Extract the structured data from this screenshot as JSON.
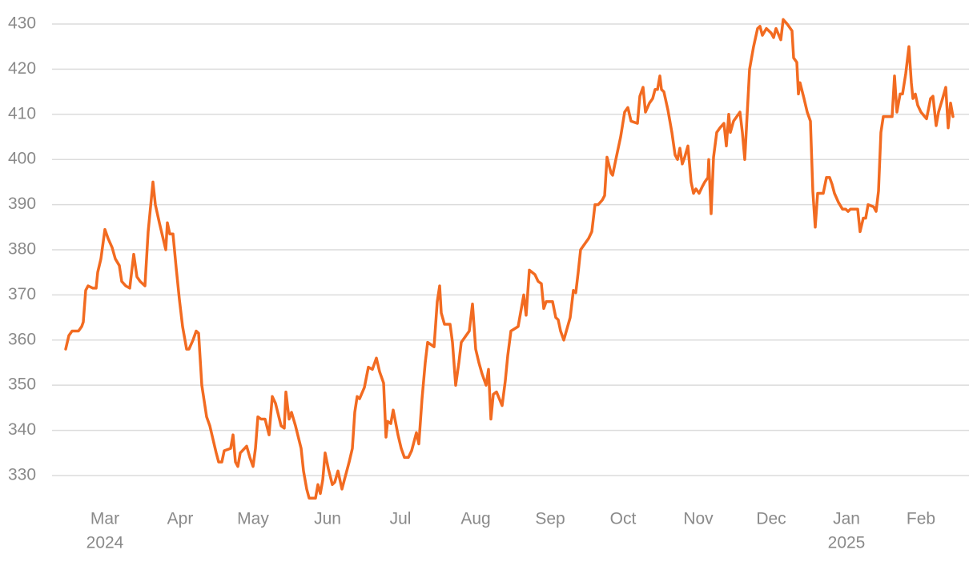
{
  "chart_data": {
    "type": "line",
    "color": "#f26b21",
    "grid": true,
    "ylim": [
      324.5,
      430
    ],
    "yticks": [
      330,
      340,
      350,
      360,
      370,
      380,
      390,
      400,
      410,
      420,
      430
    ],
    "xlim": [
      -17,
      1128
    ],
    "xticks": [
      {
        "value": 49,
        "label": "Mar"
      },
      {
        "value": 143,
        "label": "Apr"
      },
      {
        "value": 234,
        "label": "May"
      },
      {
        "value": 327,
        "label": "Jun"
      },
      {
        "value": 418,
        "label": "Jul"
      },
      {
        "value": 512,
        "label": "Aug"
      },
      {
        "value": 605,
        "label": "Sep"
      },
      {
        "value": 696,
        "label": "Oct"
      },
      {
        "value": 790,
        "label": "Nov"
      },
      {
        "value": 881,
        "label": "Dec"
      },
      {
        "value": 975,
        "label": "Jan"
      },
      {
        "value": 1068,
        "label": "Feb"
      }
    ],
    "xtick_years": [
      {
        "value": 49,
        "label": "2024"
      },
      {
        "value": 975,
        "label": "2025"
      }
    ],
    "x": [
      0,
      4,
      8,
      16,
      20,
      22,
      25,
      28,
      34,
      38,
      40,
      44,
      49,
      53,
      58,
      62,
      67,
      70,
      75,
      80,
      85,
      89,
      93,
      99,
      103,
      109,
      112,
      117,
      121,
      125,
      127,
      130,
      134,
      138,
      142,
      146,
      151,
      154,
      159,
      163,
      166,
      170,
      176,
      180,
      184,
      188,
      191,
      195,
      198,
      206,
      209,
      212,
      215,
      218,
      226,
      230,
      234,
      237,
      240,
      244,
      249,
      254,
      258,
      262,
      269,
      273,
      275,
      279,
      282,
      287,
      294,
      297,
      301,
      304,
      312,
      315,
      318,
      321,
      324,
      328,
      333,
      336,
      340,
      345,
      348,
      354,
      358,
      361,
      364,
      367,
      373,
      378,
      383,
      388,
      392,
      397,
      400,
      402,
      406,
      409,
      415,
      419,
      423,
      428,
      432,
      438,
      441,
      445,
      449,
      452,
      460,
      464,
      467,
      469,
      473,
      480,
      483,
      487,
      491,
      494,
      500,
      504,
      508,
      512,
      516,
      520,
      525,
      528,
      531,
      534,
      538,
      545,
      549,
      552,
      556,
      565,
      572,
      575,
      579,
      586,
      590,
      594,
      597,
      600,
      608,
      612,
      615,
      618,
      622,
      630,
      634,
      637,
      640,
      643,
      649,
      653,
      657,
      661,
      665,
      670,
      673,
      676,
      681,
      683,
      687,
      693,
      698,
      702,
      706,
      714,
      717,
      721,
      724,
      729,
      733,
      736,
      739,
      742,
      744,
      747,
      752,
      757,
      761,
      764,
      767,
      770,
      773,
      777,
      781,
      784,
      787,
      791,
      795,
      798,
      802,
      803,
      806,
      809,
      813,
      817,
      822,
      825,
      828,
      830,
      834,
      842,
      845,
      848,
      851,
      854,
      859,
      864,
      867,
      870,
      875,
      881,
      884,
      887,
      893,
      896,
      901,
      907,
      909,
      913,
      915,
      917,
      922,
      926,
      930,
      933,
      936,
      939,
      946,
      950,
      954,
      957,
      960,
      965,
      970,
      974,
      977,
      980,
      989,
      992,
      996,
      999,
      1002,
      1009,
      1012,
      1015,
      1018,
      1021,
      1032,
      1035,
      1038,
      1042,
      1045,
      1049,
      1053,
      1056,
      1058,
      1061,
      1064,
      1068,
      1075,
      1080,
      1083,
      1087,
      1090,
      1095,
      1099,
      1102,
      1105,
      1108
    ],
    "values": [
      358,
      361,
      362,
      362,
      363,
      364,
      371,
      372,
      371.5,
      371.5,
      375,
      378,
      384.5,
      382.5,
      380.5,
      378,
      376.5,
      373,
      372,
      371.5,
      379,
      374,
      373,
      372,
      384,
      395,
      390,
      386,
      383,
      380,
      386,
      383.5,
      383.5,
      376,
      369,
      363,
      358,
      358,
      360,
      362,
      361.5,
      350,
      343,
      341,
      338,
      335,
      333,
      333,
      335.5,
      336,
      339,
      333,
      332,
      335,
      336.5,
      334,
      332,
      336,
      343,
      342.5,
      342.5,
      339,
      347.5,
      346,
      341,
      340.5,
      348.5,
      342.5,
      344,
      341,
      336,
      331,
      327,
      325,
      325,
      328,
      326,
      329,
      335,
      331.5,
      328,
      328.5,
      331,
      327,
      329,
      333,
      336,
      344,
      347.5,
      347,
      349.5,
      354,
      353.5,
      356,
      353,
      350.5,
      338.5,
      342,
      341.5,
      344.5,
      339,
      336,
      334,
      334,
      335.5,
      339.5,
      337,
      347,
      355,
      359.5,
      358.5,
      368.5,
      372,
      366,
      363.5,
      363.5,
      359.5,
      350,
      355,
      359.5,
      361,
      362,
      368,
      358,
      355,
      352.5,
      350,
      353.5,
      342.5,
      348,
      348.5,
      345.5,
      351,
      356.5,
      362,
      363,
      370,
      365.5,
      375.5,
      374.5,
      373,
      372.5,
      367,
      368.5,
      368.5,
      365,
      364.5,
      362,
      360,
      365,
      371,
      370.5,
      375,
      380,
      381.5,
      382.5,
      384,
      390,
      390,
      391,
      392,
      400.5,
      397,
      396.5,
      400,
      405,
      410.5,
      411.5,
      408.5,
      408,
      414,
      416,
      410.5,
      412.5,
      413.5,
      415.5,
      415.5,
      418.5,
      415.5,
      415,
      411,
      406,
      401,
      400,
      402.5,
      399,
      400.5,
      403,
      395,
      392.5,
      393.5,
      392.5,
      394,
      395,
      396,
      400,
      388,
      400.5,
      406,
      407,
      408,
      403,
      410,
      406,
      408.5,
      410.5,
      406,
      400,
      410,
      420,
      425,
      429,
      429.5,
      427.5,
      429,
      428,
      427,
      429,
      426.5,
      431,
      430,
      428.5,
      422.5,
      421.5,
      414.5,
      417,
      413.5,
      410.5,
      408.5,
      393,
      385,
      392.5,
      392.5,
      396,
      396,
      394.5,
      392.5,
      390.5,
      389,
      389,
      388.5,
      389,
      389,
      384,
      387,
      387,
      390,
      389.5,
      388.5,
      393,
      406,
      409.5,
      409.5,
      418.5,
      410.5,
      414.5,
      414.5,
      419,
      425,
      417,
      413.5,
      414.5,
      412,
      410.5,
      409,
      413.5,
      414,
      407.5,
      410.5,
      413.5,
      416,
      407,
      412.5,
      409.5
    ]
  }
}
